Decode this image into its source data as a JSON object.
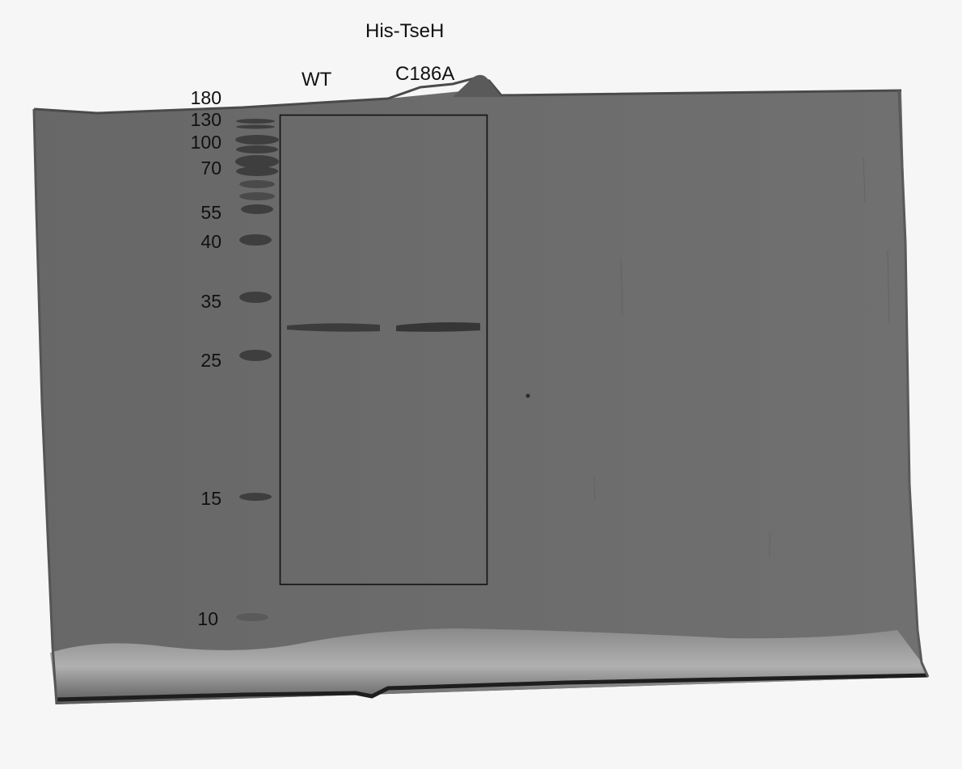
{
  "figure": {
    "title": "His-TseH",
    "lanes": [
      "WT",
      "C186A"
    ],
    "marker_sizes_kda": [
      "180",
      "130",
      "100",
      "70",
      "55",
      "40",
      "35",
      "25",
      "15",
      "10"
    ],
    "colors": {
      "background": "#f6f6f6",
      "gel": "#6a6a6a",
      "band": "#3a3a3a",
      "box": "#111111"
    }
  }
}
